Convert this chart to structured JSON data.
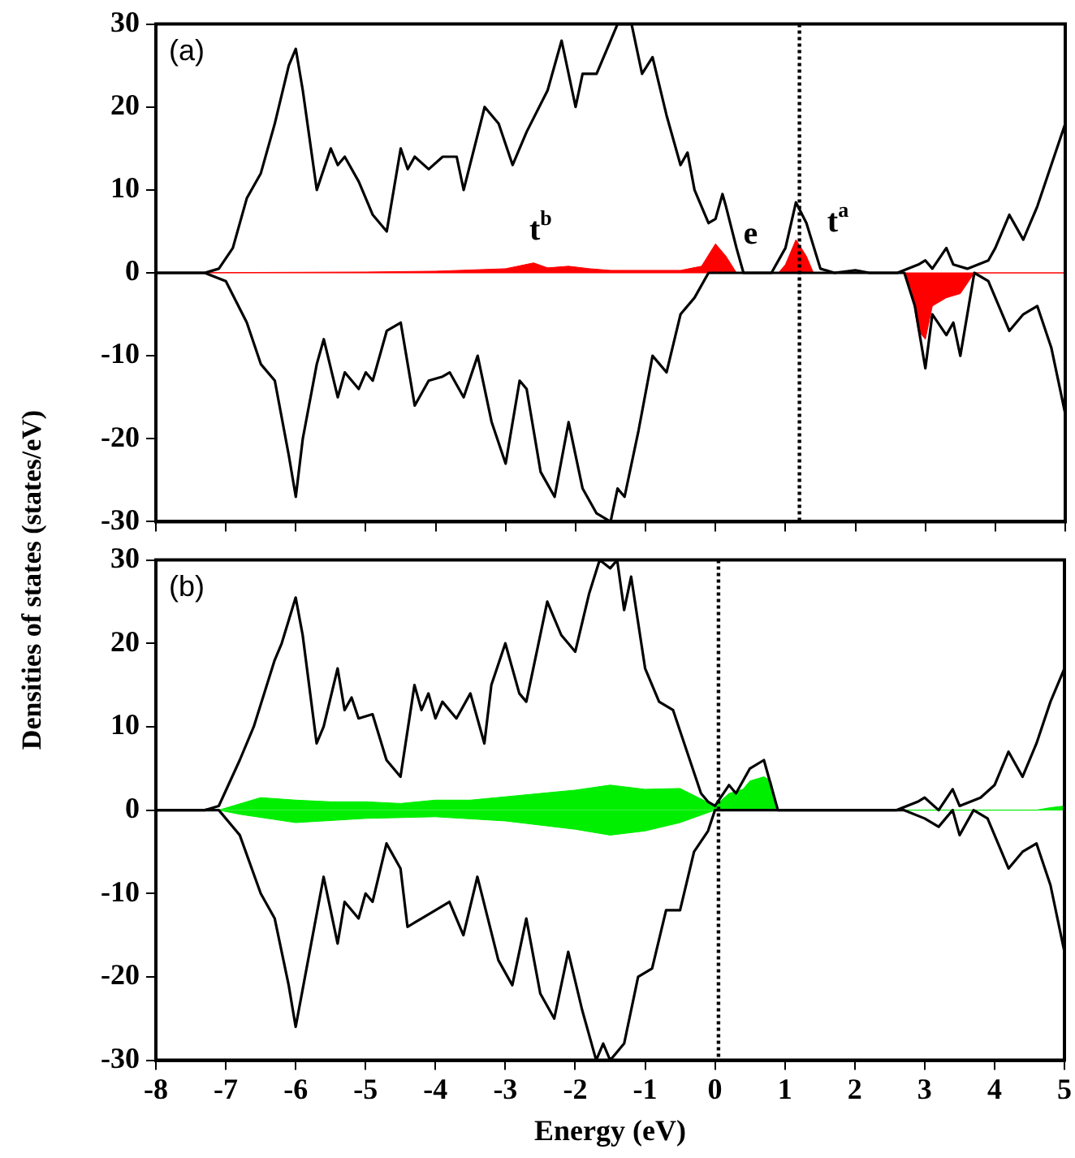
{
  "chart_data": [
    {
      "type": "line",
      "ylabel": "Densities of states (states/eV)",
      "xlim": [
        -8,
        5
      ],
      "xticks": [
        -8,
        -7,
        -6,
        -5,
        -4,
        -3,
        -2,
        -1,
        0,
        1,
        2,
        3,
        4,
        5
      ],
      "ylim": [
        -30,
        30
      ],
      "yticks": [
        -30,
        -20,
        -10,
        0,
        10,
        20,
        30
      ],
      "tick_labels": "y",
      "annotations": [
        "(a)",
        "t$^{b}$",
        "e",
        "t$^{a}$"
      ],
      "ref_lines": [
        {
          "axis": "x",
          "value": 1.2,
          "color": "#000000",
          "line_style": "dotted"
        }
      ],
      "series": [
        {
          "type": "line",
          "color": "#000000",
          "x": [
            -8,
            -7.3,
            -7.1,
            -6.9,
            -6.7,
            -6.5,
            -6.3,
            -6.1,
            -6.0,
            -5.9,
            -5.7,
            -5.5,
            -5.4,
            -5.3,
            -5.1,
            -4.9,
            -4.7,
            -4.5,
            -4.4,
            -4.3,
            -4.1,
            -3.9,
            -3.7,
            -3.6,
            -3.3,
            -3.1,
            -2.9,
            -2.7,
            -2.4,
            -2.2,
            -2.0,
            -1.9,
            -1.7,
            -1.5,
            -1.4,
            -1.2,
            -1.05,
            -0.9,
            -0.7,
            -0.5,
            -0.4,
            -0.3,
            -0.1,
            0,
            0.1,
            0.15,
            0.3,
            0.4,
            0.8,
            1.0,
            1.15,
            1.3,
            1.5,
            1.7,
            2.0,
            2.2,
            2.6,
            2.9,
            3.0,
            3.1,
            3.3,
            3.4,
            3.6,
            3.9,
            4.0,
            4.2,
            4.4,
            4.6,
            4.8,
            5.0
          ],
          "values": [
            0,
            0,
            0.5,
            3,
            9,
            12,
            18,
            25,
            27,
            22,
            10,
            15,
            13,
            14,
            11,
            7,
            5,
            15,
            12.5,
            14,
            12.5,
            14,
            14,
            10,
            20,
            18,
            13,
            17,
            22,
            28,
            20,
            24,
            24,
            28,
            30,
            30,
            24,
            26,
            19,
            13,
            14.5,
            10,
            6,
            6.5,
            9.5,
            8,
            3,
            0,
            0,
            3,
            8.5,
            6,
            0.5,
            0,
            0.3,
            0,
            0,
            1,
            1.5,
            0.5,
            3,
            1,
            0.5,
            1.5,
            3,
            7,
            4,
            8,
            13,
            18
          ]
        },
        {
          "type": "line",
          "color": "#000000",
          "x": [
            -8,
            -7.3,
            -7.0,
            -6.7,
            -6.5,
            -6.3,
            -6.1,
            -6.0,
            -5.9,
            -5.7,
            -5.6,
            -5.4,
            -5.3,
            -5.1,
            -5.0,
            -4.9,
            -4.7,
            -4.5,
            -4.3,
            -4.1,
            -3.9,
            -3.8,
            -3.6,
            -3.4,
            -3.2,
            -3.0,
            -2.8,
            -2.7,
            -2.5,
            -2.3,
            -2.1,
            -1.9,
            -1.7,
            -1.5,
            -1.4,
            -1.3,
            -1.1,
            -0.9,
            -0.7,
            -0.5,
            -0.3,
            -0.1,
            0,
            2.7,
            2.85,
            3.0,
            3.1,
            3.3,
            3.4,
            3.5,
            3.7,
            3.9,
            4.2,
            4.4,
            4.6,
            4.8,
            5.0
          ],
          "values": [
            0,
            0,
            -1,
            -6,
            -11,
            -13,
            -22,
            -27,
            -20,
            -11,
            -8,
            -15,
            -12,
            -14,
            -12,
            -13,
            -7,
            -6,
            -16,
            -13,
            -12.5,
            -12,
            -15,
            -10,
            -18,
            -23,
            -13,
            -14,
            -24,
            -27,
            -18,
            -26,
            -29,
            -30,
            -26,
            -27,
            -19,
            -10,
            -12,
            -5,
            -3,
            0,
            0,
            0,
            -4,
            -11.5,
            -5,
            -7.5,
            -6,
            -10,
            0,
            -1,
            -7,
            -5,
            -4,
            -9,
            -17
          ]
        },
        {
          "type": "area",
          "color": "#ff0000",
          "x": [
            -8,
            -5,
            -4,
            -3,
            -2.6,
            -2.4,
            -2.1,
            -1.8,
            -1.5,
            -0.5,
            -0.2,
            0.0,
            0.15,
            0.3,
            0.9,
            1.0,
            1.15,
            1.3,
            1.4,
            5.0
          ],
          "values": [
            0,
            0.1,
            0.2,
            0.5,
            1.2,
            0.6,
            0.8,
            0.5,
            0.3,
            0.3,
            0.8,
            3.5,
            2,
            0,
            0,
            1,
            4,
            2,
            0,
            0
          ]
        },
        {
          "type": "area",
          "color": "#ff0000",
          "x": [
            -8,
            2.7,
            2.8,
            2.9,
            3.0,
            3.1,
            3.3,
            3.5,
            3.7,
            5.0
          ],
          "values": [
            0,
            0,
            -2,
            -7,
            -8,
            -4,
            -3,
            -2.5,
            0,
            0
          ]
        }
      ]
    },
    {
      "type": "line",
      "xlabel": "Energy (eV)",
      "xlim": [
        -8,
        5
      ],
      "xticks": [
        -8,
        -7,
        -6,
        -5,
        -4,
        -3,
        -2,
        -1,
        0,
        1,
        2,
        3,
        4,
        5
      ],
      "ylim": [
        -30,
        30
      ],
      "yticks": [
        -30,
        -20,
        -10,
        0,
        10,
        20,
        30
      ],
      "annotations": [
        "(b)"
      ],
      "ref_lines": [
        {
          "axis": "x",
          "value": 0.05,
          "color": "#000000",
          "line_style": "dotted"
        }
      ],
      "series": [
        {
          "type": "line",
          "color": "#000000",
          "x": [
            -8,
            -7.3,
            -7.1,
            -6.8,
            -6.6,
            -6.3,
            -6.2,
            -6.0,
            -5.9,
            -5.7,
            -5.6,
            -5.4,
            -5.3,
            -5.2,
            -5.1,
            -4.9,
            -4.7,
            -4.5,
            -4.3,
            -4.2,
            -4.1,
            -4.0,
            -3.9,
            -3.7,
            -3.5,
            -3.3,
            -3.2,
            -3.0,
            -2.8,
            -2.7,
            -2.4,
            -2.2,
            -2.0,
            -1.8,
            -1.65,
            -1.5,
            -1.4,
            -1.3,
            -1.2,
            -1.0,
            -0.8,
            -0.6,
            -0.4,
            -0.2,
            -0.1,
            0.0,
            0.2,
            0.3,
            0.5,
            0.7,
            0.8,
            0.9,
            2.6,
            2.9,
            3.0,
            3.2,
            3.4,
            3.5,
            3.8,
            4.0,
            4.2,
            4.4,
            4.6,
            4.8,
            5.0
          ],
          "values": [
            0,
            0,
            0.5,
            6,
            10,
            18,
            20,
            25.5,
            21,
            8,
            10,
            17,
            12,
            13.5,
            11,
            11.5,
            6,
            4,
            15,
            12,
            14,
            11,
            13,
            11,
            14,
            8,
            15,
            20,
            14,
            13,
            25,
            21,
            19,
            26,
            30,
            29,
            30,
            24,
            28,
            17,
            13,
            12,
            7,
            2,
            1,
            0.5,
            3,
            2,
            5,
            6,
            3,
            0,
            0,
            1,
            1.5,
            0,
            2.5,
            0.5,
            1.5,
            3,
            7,
            4,
            8,
            13,
            17
          ]
        },
        {
          "type": "line",
          "color": "#000000",
          "x": [
            -8,
            -7.1,
            -6.8,
            -6.5,
            -6.3,
            -6.1,
            -6.0,
            -5.8,
            -5.6,
            -5.4,
            -5.3,
            -5.1,
            -5.0,
            -4.9,
            -4.7,
            -4.5,
            -4.4,
            -4.2,
            -4.0,
            -3.8,
            -3.6,
            -3.4,
            -3.1,
            -2.9,
            -2.7,
            -2.5,
            -2.3,
            -2.1,
            -1.9,
            -1.7,
            -1.6,
            -1.5,
            -1.3,
            -1.1,
            -0.9,
            -0.7,
            -0.5,
            -0.3,
            -0.1,
            0.0,
            2.7,
            3.0,
            3.2,
            3.4,
            3.5,
            3.7,
            3.9,
            4.2,
            4.4,
            4.6,
            4.8,
            5.0
          ],
          "values": [
            0,
            0,
            -3,
            -10,
            -13,
            -21,
            -26,
            -17,
            -8,
            -16,
            -11,
            -13,
            -10,
            -11,
            -4,
            -7,
            -14,
            -13,
            -12,
            -11,
            -15,
            -8,
            -18,
            -21,
            -13,
            -22,
            -25,
            -17,
            -24,
            -30,
            -28,
            -30,
            -28,
            -20,
            -19,
            -12,
            -12,
            -5,
            -2.5,
            0,
            0,
            -1,
            -2,
            0,
            -3,
            0,
            -1,
            -7,
            -5,
            -4,
            -9,
            -17
          ]
        },
        {
          "type": "area",
          "color": "#00ee00",
          "x": [
            -8,
            -7.1,
            -6.7,
            -6.5,
            -6.0,
            -5.5,
            -5.0,
            -4.5,
            -4.0,
            -3.5,
            -3.0,
            -2.5,
            -2.0,
            -1.5,
            -1.0,
            -0.5,
            0.0,
            0.2,
            0.4,
            0.5,
            0.7,
            0.8,
            0.9,
            4.6,
            4.8,
            5.0
          ],
          "values": [
            0,
            0,
            1,
            1.5,
            1.2,
            1,
            1,
            0.8,
            1.2,
            1.2,
            1.6,
            2,
            2.4,
            3,
            2.5,
            2.6,
            0.5,
            2,
            2.5,
            3.5,
            4,
            3.5,
            0,
            0,
            0.3,
            0.5
          ]
        },
        {
          "type": "area",
          "color": "#00ee00",
          "x": [
            -8,
            -7.1,
            -6.8,
            -6.0,
            -5.0,
            -4.0,
            -3.0,
            -2.0,
            -1.5,
            -1.0,
            -0.5,
            0.0,
            5.0
          ],
          "values": [
            0,
            0,
            -0.5,
            -1.5,
            -1,
            -0.8,
            -1.3,
            -2.3,
            -3,
            -2.5,
            -1.5,
            0,
            0
          ]
        }
      ]
    }
  ]
}
